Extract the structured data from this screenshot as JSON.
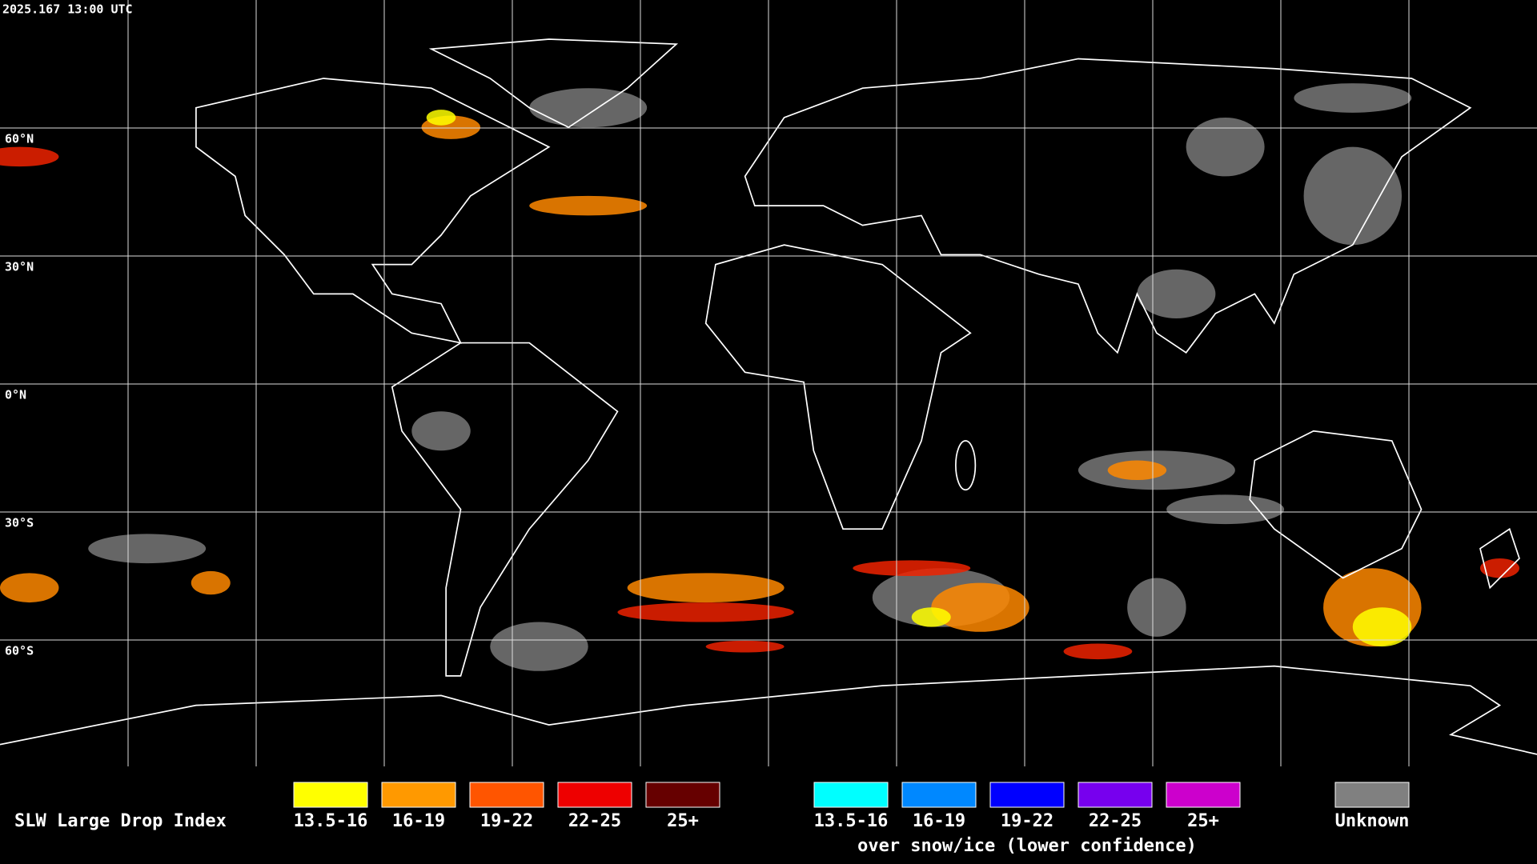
{
  "header": {
    "timestamp": "2025.167 13:00 UTC"
  },
  "map": {
    "latitude_labels": [
      "60°N",
      "30°N",
      "0°N",
      "30°S",
      "60°S"
    ]
  },
  "legend": {
    "title": "SLW Large Drop Index",
    "groups": [
      {
        "items": [
          {
            "label": "13.5-16",
            "color": "#ffff00"
          },
          {
            "label": "16-19",
            "color": "#ff9900"
          },
          {
            "label": "19-22",
            "color": "#ff5500"
          },
          {
            "label": "22-25",
            "color": "#ee0000"
          },
          {
            "label": "25+",
            "color": "#660000"
          }
        ]
      },
      {
        "items": [
          {
            "label": "13.5-16",
            "color": "#00ffff"
          },
          {
            "label": "16-19",
            "color": "#0088ff"
          },
          {
            "label": "19-22",
            "color": "#0000ff"
          },
          {
            "label": "22-25",
            "color": "#7700ee"
          },
          {
            "label": "25+",
            "color": "#cc00cc"
          }
        ],
        "caption": "over snow/ice (lower confidence)"
      },
      {
        "items": [
          {
            "label": "Unknown",
            "color": "#808080"
          }
        ]
      }
    ]
  }
}
